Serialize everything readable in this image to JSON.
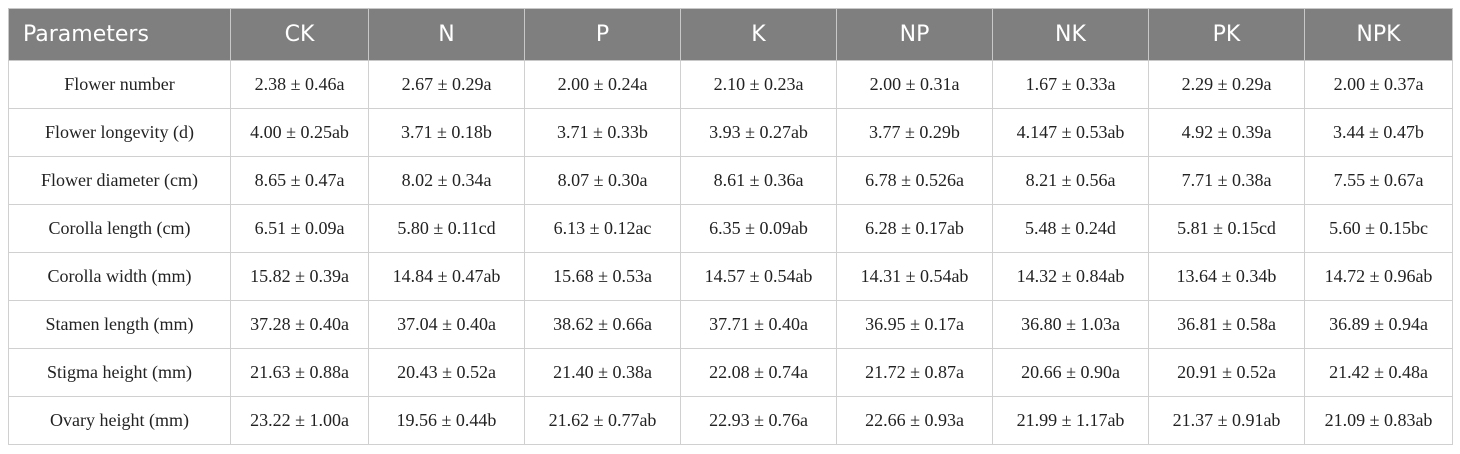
{
  "table": {
    "header": [
      "Parameters",
      "CK",
      "N",
      "P",
      "K",
      "NP",
      "NK",
      "PK",
      "NPK"
    ],
    "rows": [
      [
        "Flower number",
        "2.38 ± 0.46a",
        "2.67 ± 0.29a",
        "2.00 ± 0.24a",
        "2.10 ± 0.23a",
        "2.00 ± 0.31a",
        "1.67 ± 0.33a",
        "2.29 ± 0.29a",
        "2.00 ± 0.37a"
      ],
      [
        "Flower longevity (d)",
        "4.00 ± 0.25ab",
        "3.71 ± 0.18b",
        "3.71 ± 0.33b",
        "3.93 ± 0.27ab",
        "3.77 ± 0.29b",
        "4.147 ± 0.53ab",
        "4.92 ± 0.39a",
        "3.44 ± 0.47b"
      ],
      [
        "Flower diameter (cm)",
        "8.65 ± 0.47a",
        "8.02 ± 0.34a",
        "8.07 ± 0.30a",
        "8.61 ± 0.36a",
        "6.78 ± 0.526a",
        "8.21 ± 0.56a",
        "7.71 ± 0.38a",
        "7.55 ± 0.67a"
      ],
      [
        "Corolla length (cm)",
        "6.51 ± 0.09a",
        "5.80 ± 0.11cd",
        "6.13 ± 0.12ac",
        "6.35 ± 0.09ab",
        "6.28 ± 0.17ab",
        "5.48 ± 0.24d",
        "5.81 ± 0.15cd",
        "5.60 ± 0.15bc"
      ],
      [
        "Corolla width (mm)",
        "15.82 ± 0.39a",
        "14.84 ± 0.47ab",
        "15.68 ± 0.53a",
        "14.57 ± 0.54ab",
        "14.31 ± 0.54ab",
        "14.32 ± 0.84ab",
        "13.64 ± 0.34b",
        "14.72 ± 0.96ab"
      ],
      [
        "Stamen length (mm)",
        "37.28 ± 0.40a",
        "37.04 ± 0.40a",
        "38.62 ± 0.66a",
        "37.71 ± 0.40a",
        "36.95 ± 0.17a",
        "36.80 ± 1.03a",
        "36.81 ± 0.58a",
        "36.89 ± 0.94a"
      ],
      [
        "Stigma height (mm)",
        "21.63 ± 0.88a",
        "20.43 ± 0.52a",
        "21.40 ± 0.38a",
        "22.08 ± 0.74a",
        "21.72 ± 0.87a",
        "20.66 ± 0.90a",
        "20.91 ± 0.52a",
        "21.42 ± 0.48a"
      ],
      [
        "Ovary height (mm)",
        "23.22 ± 1.00a",
        "19.56 ± 0.44b",
        "21.62 ± 0.77ab",
        "22.93 ± 0.76a",
        "22.66 ± 0.93a",
        "21.99 ± 1.17ab",
        "21.37 ± 0.91ab",
        "21.09 ± 0.83ab"
      ]
    ]
  }
}
